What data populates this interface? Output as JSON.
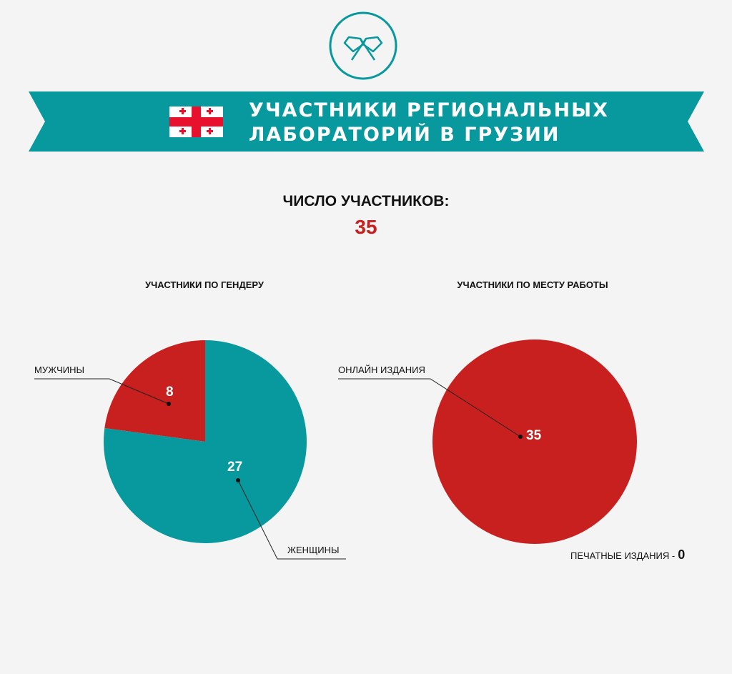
{
  "header": {
    "title_line1": "УЧАСТНИКИ РЕГИОНАЛЬНЫХ",
    "title_line2": "ЛАБОРАТОРИЙ В ГРУЗИИ",
    "icon": "crossed-flags-icon",
    "flag": "georgia-flag-icon",
    "banner_color": "#07999d"
  },
  "total": {
    "label": "ЧИСЛО УЧАСТНИКОВ:",
    "value": "35",
    "value_color": "#c8201f"
  },
  "chart_data": [
    {
      "type": "pie",
      "title": "УЧАСТНИКИ ПО ГЕНДЕРУ",
      "categories": [
        "МУЖЧИНЫ",
        "ЖЕНЩИНЫ"
      ],
      "values": [
        8,
        27
      ],
      "colors": [
        "#c8201f",
        "#07999d"
      ]
    },
    {
      "type": "pie",
      "title": "УЧАСТНИКИ ПО МЕСТУ РАБОТЫ",
      "categories": [
        "ОНЛАЙН ИЗДАНИЯ",
        "ПЕЧАТНЫЕ ИЗДАНИЯ"
      ],
      "values": [
        35,
        0
      ],
      "colors": [
        "#c8201f",
        "#07999d"
      ]
    }
  ],
  "print_note": {
    "label": "ПЕЧАТНЫЕ ИЗДАНИЯ -",
    "value": "0"
  }
}
